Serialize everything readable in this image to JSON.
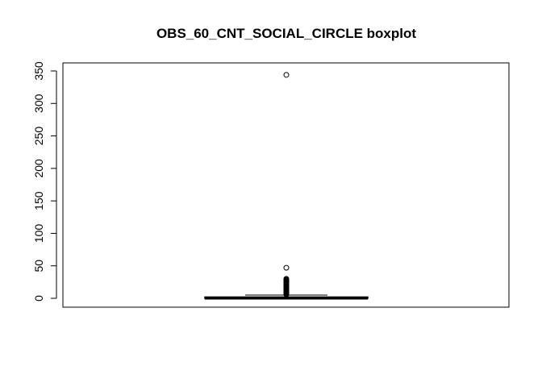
{
  "chart_data": {
    "type": "boxplot",
    "title": "OBS_60_CNT_SOCIAL_CIRCLE boxplot",
    "xlabel": "",
    "ylabel": "",
    "ylim": [
      0,
      350
    ],
    "yticks": [
      "0",
      "50",
      "100",
      "150",
      "200",
      "250",
      "300",
      "350"
    ],
    "grid": false,
    "box": {
      "min": 0,
      "q1": 0,
      "median": 0,
      "q3": 2,
      "whisker_high": 5
    },
    "outliers": [
      6,
      7,
      8,
      9,
      10,
      11,
      12,
      13,
      14,
      15,
      16,
      17,
      18,
      19,
      20,
      21,
      22,
      23,
      24,
      25,
      26,
      27,
      28,
      29,
      30,
      47,
      344
    ]
  }
}
